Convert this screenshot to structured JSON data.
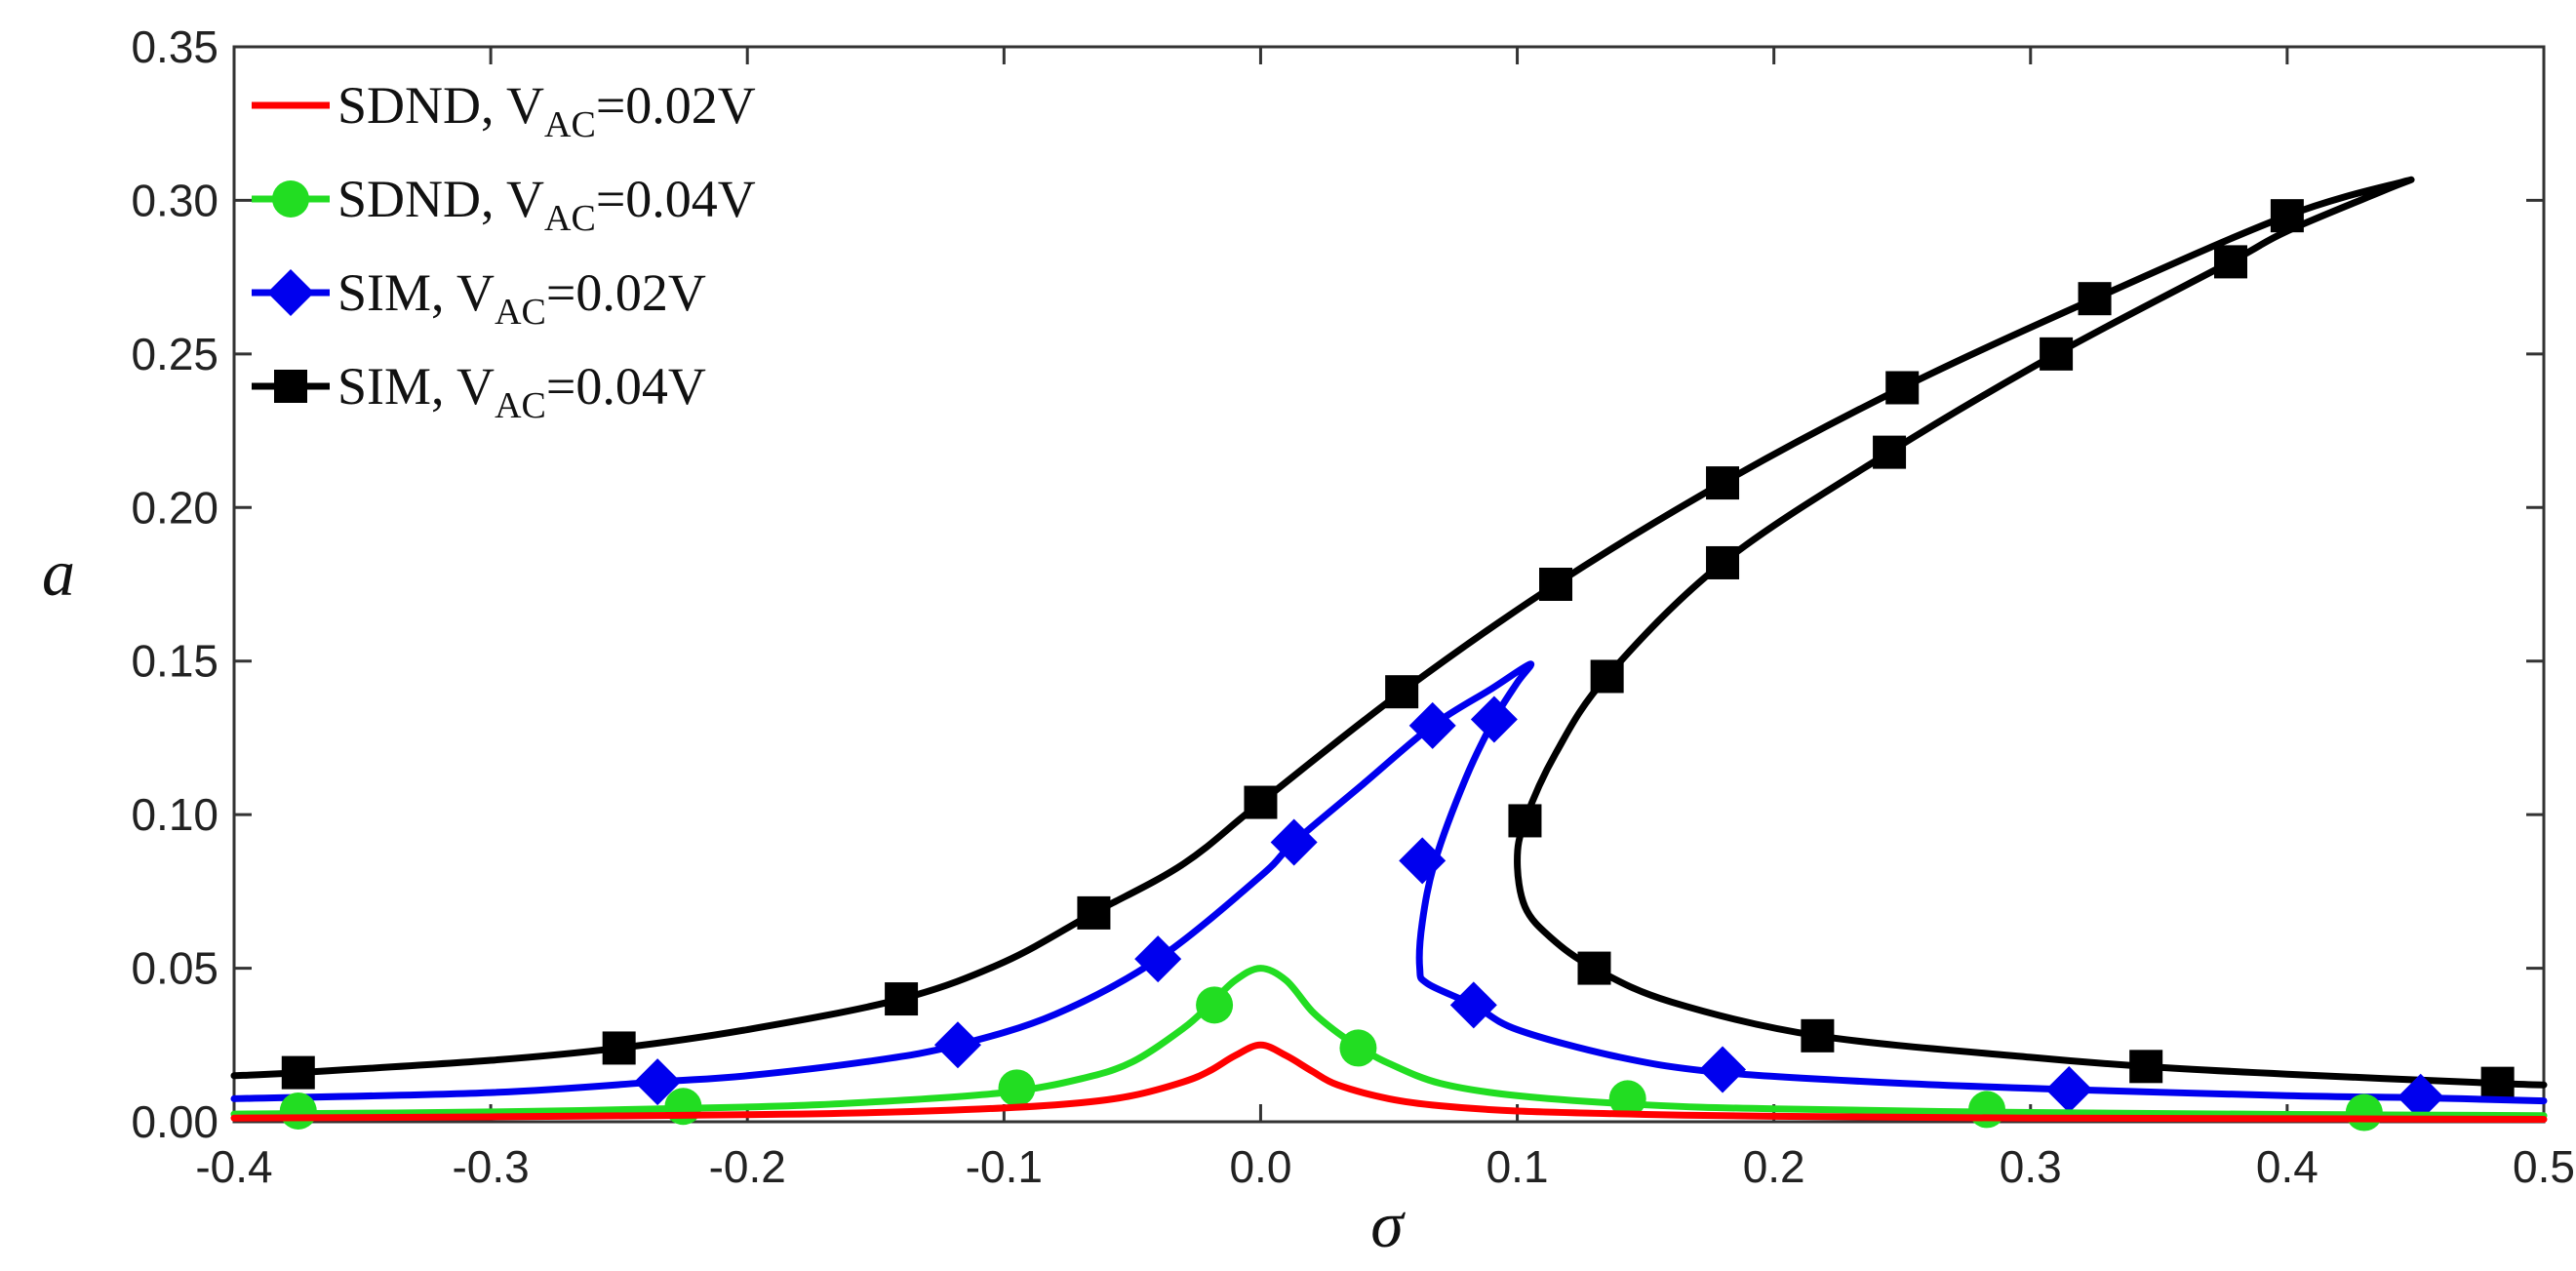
{
  "chart_data": {
    "type": "line",
    "title": "",
    "xlabel": "σ",
    "ylabel": "a",
    "xlim": [
      -0.4,
      0.5
    ],
    "ylim": [
      0,
      0.35
    ],
    "x_ticks": [
      "-0.4",
      "-0.3",
      "-0.2",
      "-0.1",
      "0.0",
      "0.1",
      "0.2",
      "0.3",
      "0.4",
      "0.5"
    ],
    "x_tick_values": [
      -0.4,
      -0.3,
      -0.2,
      -0.1,
      0.0,
      0.1,
      0.2,
      0.3,
      0.4,
      0.5
    ],
    "y_ticks": [
      "0.00",
      "0.05",
      "0.10",
      "0.15",
      "0.20",
      "0.25",
      "0.30",
      "0.35"
    ],
    "y_tick_values": [
      0,
      0.05,
      0.1,
      0.15,
      0.2,
      0.25,
      0.3,
      0.35
    ],
    "grid": false,
    "legend_position": "top-left",
    "series": [
      {
        "name": "SDND, VAC=0.02V",
        "label_main": "SDND, V",
        "label_sub": "AC",
        "label_tail": "=0.02V",
        "color": "#ff0000",
        "marker": "none",
        "x": [
          -0.4,
          -0.3,
          -0.2,
          -0.15,
          -0.1,
          -0.07,
          -0.05,
          -0.03,
          -0.02,
          -0.01,
          0.0,
          0.01,
          0.02,
          0.03,
          0.05,
          0.07,
          0.1,
          0.15,
          0.2,
          0.3,
          0.4,
          0.5
        ],
        "y": [
          0.0012,
          0.0016,
          0.0023,
          0.003,
          0.0045,
          0.0062,
          0.0085,
          0.013,
          0.0165,
          0.0215,
          0.025,
          0.0215,
          0.0165,
          0.012,
          0.0075,
          0.0052,
          0.0035,
          0.0024,
          0.0018,
          0.0012,
          0.001,
          0.0008
        ],
        "marker_x": [],
        "marker_y": []
      },
      {
        "name": "SDND, VAC=0.04V",
        "label_main": "SDND, V",
        "label_sub": "AC",
        "label_tail": "=0.04V",
        "color": "#22dd22",
        "marker": "circle",
        "x": [
          -0.4,
          -0.3,
          -0.2,
          -0.15,
          -0.1,
          -0.07,
          -0.05,
          -0.03,
          -0.02,
          -0.01,
          0.0,
          0.01,
          0.02,
          0.03,
          0.04,
          0.05,
          0.07,
          0.1,
          0.15,
          0.2,
          0.3,
          0.4,
          0.5
        ],
        "y": [
          0.0025,
          0.0032,
          0.0048,
          0.0065,
          0.0095,
          0.014,
          0.0195,
          0.0305,
          0.038,
          0.046,
          0.05,
          0.046,
          0.036,
          0.029,
          0.0235,
          0.019,
          0.0125,
          0.0085,
          0.0055,
          0.0042,
          0.003,
          0.0024,
          0.002
        ],
        "marker_x": [
          -0.375,
          -0.225,
          -0.095,
          -0.018,
          0.038,
          0.143,
          0.283,
          0.43
        ],
        "marker_y": [
          0.0035,
          0.005,
          0.011,
          0.038,
          0.024,
          0.0075,
          0.004,
          0.003
        ]
      },
      {
        "name": "SIM, VAC=0.02V",
        "label_main": "SIM, V",
        "label_sub": "AC",
        "label_tail": "=0.02V",
        "color": "#0000ee",
        "marker": "diamond",
        "x": [
          -0.4,
          -0.3,
          -0.235,
          -0.2,
          -0.15,
          -0.118,
          -0.08,
          -0.04,
          0.0,
          0.013,
          0.04,
          0.067,
          0.09,
          0.105,
          0.1,
          0.091,
          0.08,
          0.068,
          0.063,
          0.062,
          0.065,
          0.083,
          0.1,
          0.14,
          0.18,
          0.25,
          0.315,
          0.4,
          0.452,
          0.5
        ],
        "y": [
          0.0075,
          0.0095,
          0.013,
          0.015,
          0.02,
          0.025,
          0.035,
          0.053,
          0.08,
          0.091,
          0.11,
          0.129,
          0.141,
          0.149,
          0.143,
          0.131,
          0.112,
          0.085,
          0.065,
          0.05,
          0.045,
          0.038,
          0.03,
          0.021,
          0.016,
          0.0125,
          0.0105,
          0.0085,
          0.0078,
          0.0068
        ],
        "marker_x": [
          -0.235,
          -0.118,
          -0.04,
          0.013,
          0.067,
          0.091,
          0.063,
          0.083,
          0.18,
          0.315,
          0.452
        ],
        "marker_y": [
          0.013,
          0.025,
          0.053,
          0.091,
          0.129,
          0.131,
          0.085,
          0.038,
          0.017,
          0.0105,
          0.008
        ]
      },
      {
        "name": "SIM, VAC=0.04V",
        "label_main": "SIM, V",
        "label_sub": "AC",
        "label_tail": "=0.04V",
        "color": "#000000",
        "marker": "square",
        "x": [
          -0.4,
          -0.375,
          -0.3,
          -0.25,
          -0.2,
          -0.14,
          -0.1,
          -0.065,
          -0.03,
          0.0,
          0.055,
          0.115,
          0.18,
          0.25,
          0.325,
          0.4,
          0.445,
          0.44,
          0.4,
          0.378,
          0.31,
          0.245,
          0.18,
          0.135,
          0.115,
          0.103,
          0.1,
          0.103,
          0.113,
          0.13,
          0.16,
          0.217,
          0.3,
          0.345,
          0.4,
          0.482,
          0.5
        ],
        "y": [
          0.015,
          0.016,
          0.02,
          0.024,
          0.03,
          0.04,
          0.052,
          0.068,
          0.084,
          0.104,
          0.14,
          0.175,
          0.208,
          0.239,
          0.268,
          0.295,
          0.306,
          0.304,
          0.29,
          0.28,
          0.25,
          0.218,
          0.182,
          0.145,
          0.12,
          0.098,
          0.085,
          0.07,
          0.06,
          0.05,
          0.039,
          0.028,
          0.021,
          0.018,
          0.0155,
          0.0125,
          0.012
        ],
        "marker_x": [
          -0.375,
          -0.25,
          -0.14,
          -0.065,
          0.0,
          0.055,
          0.115,
          0.18,
          0.25,
          0.325,
          0.4,
          0.378,
          0.31,
          0.245,
          0.18,
          0.135,
          0.103,
          0.13,
          0.217,
          0.345,
          0.482
        ],
        "marker_y": [
          0.016,
          0.024,
          0.04,
          0.068,
          0.104,
          0.14,
          0.175,
          0.208,
          0.239,
          0.268,
          0.295,
          0.28,
          0.25,
          0.218,
          0.182,
          0.145,
          0.098,
          0.05,
          0.028,
          0.018,
          0.0125
        ]
      }
    ]
  }
}
